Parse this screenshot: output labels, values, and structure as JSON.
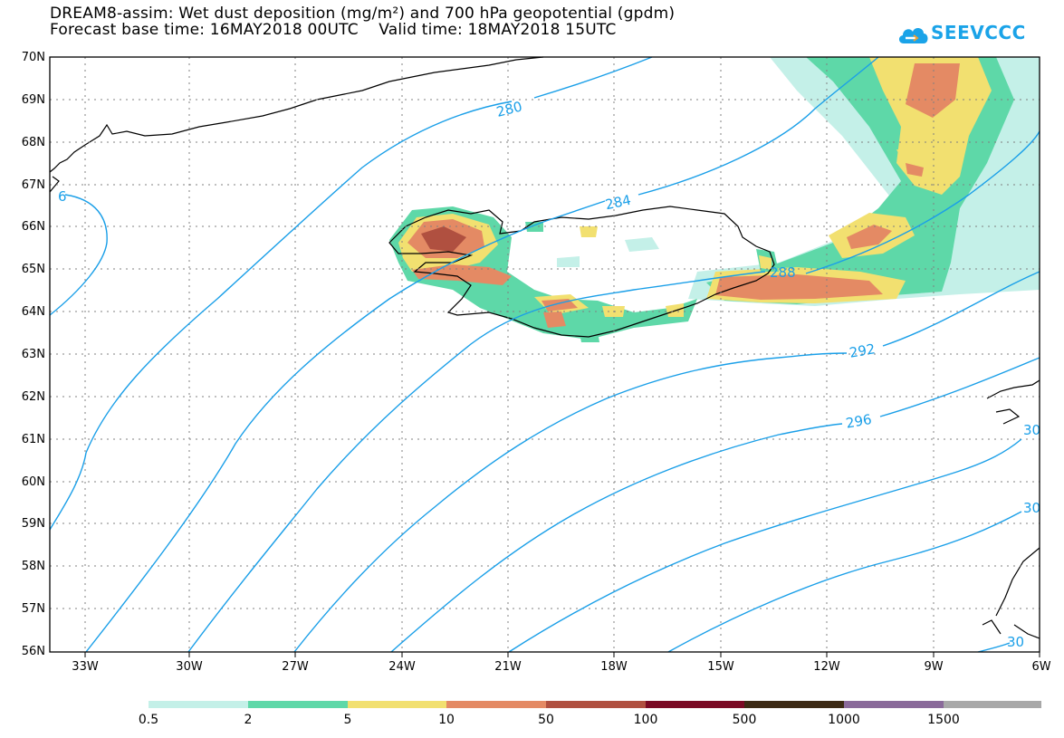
{
  "title": {
    "line1": "DREAM8-assim: Wet dust deposition (mg/m²) and 700 hPa geopotential (gpdm)",
    "line2": "Forecast base time: 16MAY2018 00UTC    Valid time: 18MAY2018 15UTC"
  },
  "logo": {
    "text": "SEEVCCC",
    "icon": "cloud-icon",
    "color": "#1aa3e8"
  },
  "axes": {
    "lat_labels": [
      "70N",
      "69N",
      "68N",
      "67N",
      "66N",
      "65N",
      "64N",
      "63N",
      "62N",
      "61N",
      "60N",
      "59N",
      "58N",
      "57N",
      "56N"
    ],
    "lon_labels": [
      "33W",
      "30W",
      "27W",
      "24W",
      "21W",
      "18W",
      "15W",
      "12W",
      "9W",
      "6W"
    ]
  },
  "contours": {
    "color": "#1a9fe8",
    "labels": [
      "280",
      "284",
      "288",
      "292",
      "296",
      "30",
      "30",
      "30",
      "6"
    ]
  },
  "legend": {
    "colors": [
      "#c4f0e8",
      "#5ed8a8",
      "#f2e070",
      "#e48a64",
      "#b05040",
      "#7a0a24",
      "#3c2a14",
      "#8a6a9a",
      "#a8a8a8"
    ],
    "labels": [
      "0.5",
      "2",
      "5",
      "10",
      "50",
      "100",
      "500",
      "1000",
      "1500"
    ]
  }
}
